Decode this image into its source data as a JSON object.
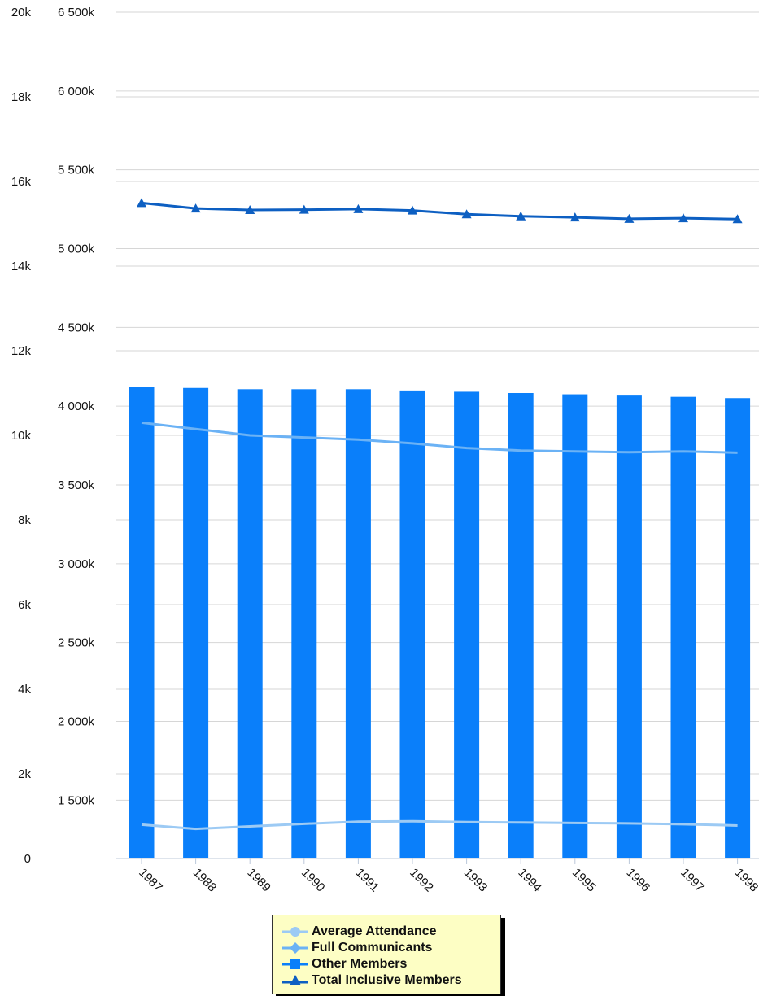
{
  "chart_data": {
    "type": "bar",
    "categories": [
      "1987",
      "1988",
      "1989",
      "1990",
      "1991",
      "1992",
      "1993",
      "1994",
      "1995",
      "1996",
      "1997",
      "1998"
    ],
    "y_left": {
      "ticks": [
        "0",
        "2k",
        "4k",
        "6k",
        "8k",
        "10k",
        "12k",
        "14k",
        "16k",
        "18k",
        "20k"
      ],
      "range": [
        0,
        20000
      ]
    },
    "y_right": {
      "ticks": [
        "1 500k",
        "2 000k",
        "2 500k",
        "3 000k",
        "3 500k",
        "4 000k",
        "4 500k",
        "5 000k",
        "5 500k",
        "6 000k",
        "6 500k"
      ],
      "range": [
        1130000,
        6500000
      ]
    },
    "series": [
      {
        "name": "Average Attendance",
        "axis": "left",
        "type": "line",
        "color": "#9ccaf4",
        "values": [
          800,
          700,
          760,
          820,
          870,
          880,
          860,
          850,
          840,
          830,
          810,
          780
        ]
      },
      {
        "name": "Full Communicants",
        "axis": "left",
        "type": "line",
        "color": "#6bb2f5",
        "values": [
          10300,
          10150,
          10000,
          9950,
          9900,
          9810,
          9700,
          9640,
          9620,
          9600,
          9620,
          9590
        ]
      },
      {
        "name": "Other Members",
        "axis": "left",
        "type": "bar",
        "color": "#0a7ffa",
        "values": [
          11150,
          11120,
          11090,
          11090,
          11090,
          11060,
          11030,
          11000,
          10970,
          10940,
          10910,
          10880
        ]
      },
      {
        "name": "Total Inclusive Members",
        "axis": "right",
        "type": "line",
        "color": "#0d5fc2",
        "values": [
          5290000,
          5255000,
          5245000,
          5247000,
          5251000,
          5242000,
          5218000,
          5205000,
          5198000,
          5189000,
          5193000,
          5187000
        ]
      }
    ],
    "grid": true,
    "legend_position": "bottom-center"
  },
  "legend": {
    "items": [
      "Average Attendance",
      "Full Communicants",
      "Other Members",
      "Total Inclusive Members"
    ]
  }
}
